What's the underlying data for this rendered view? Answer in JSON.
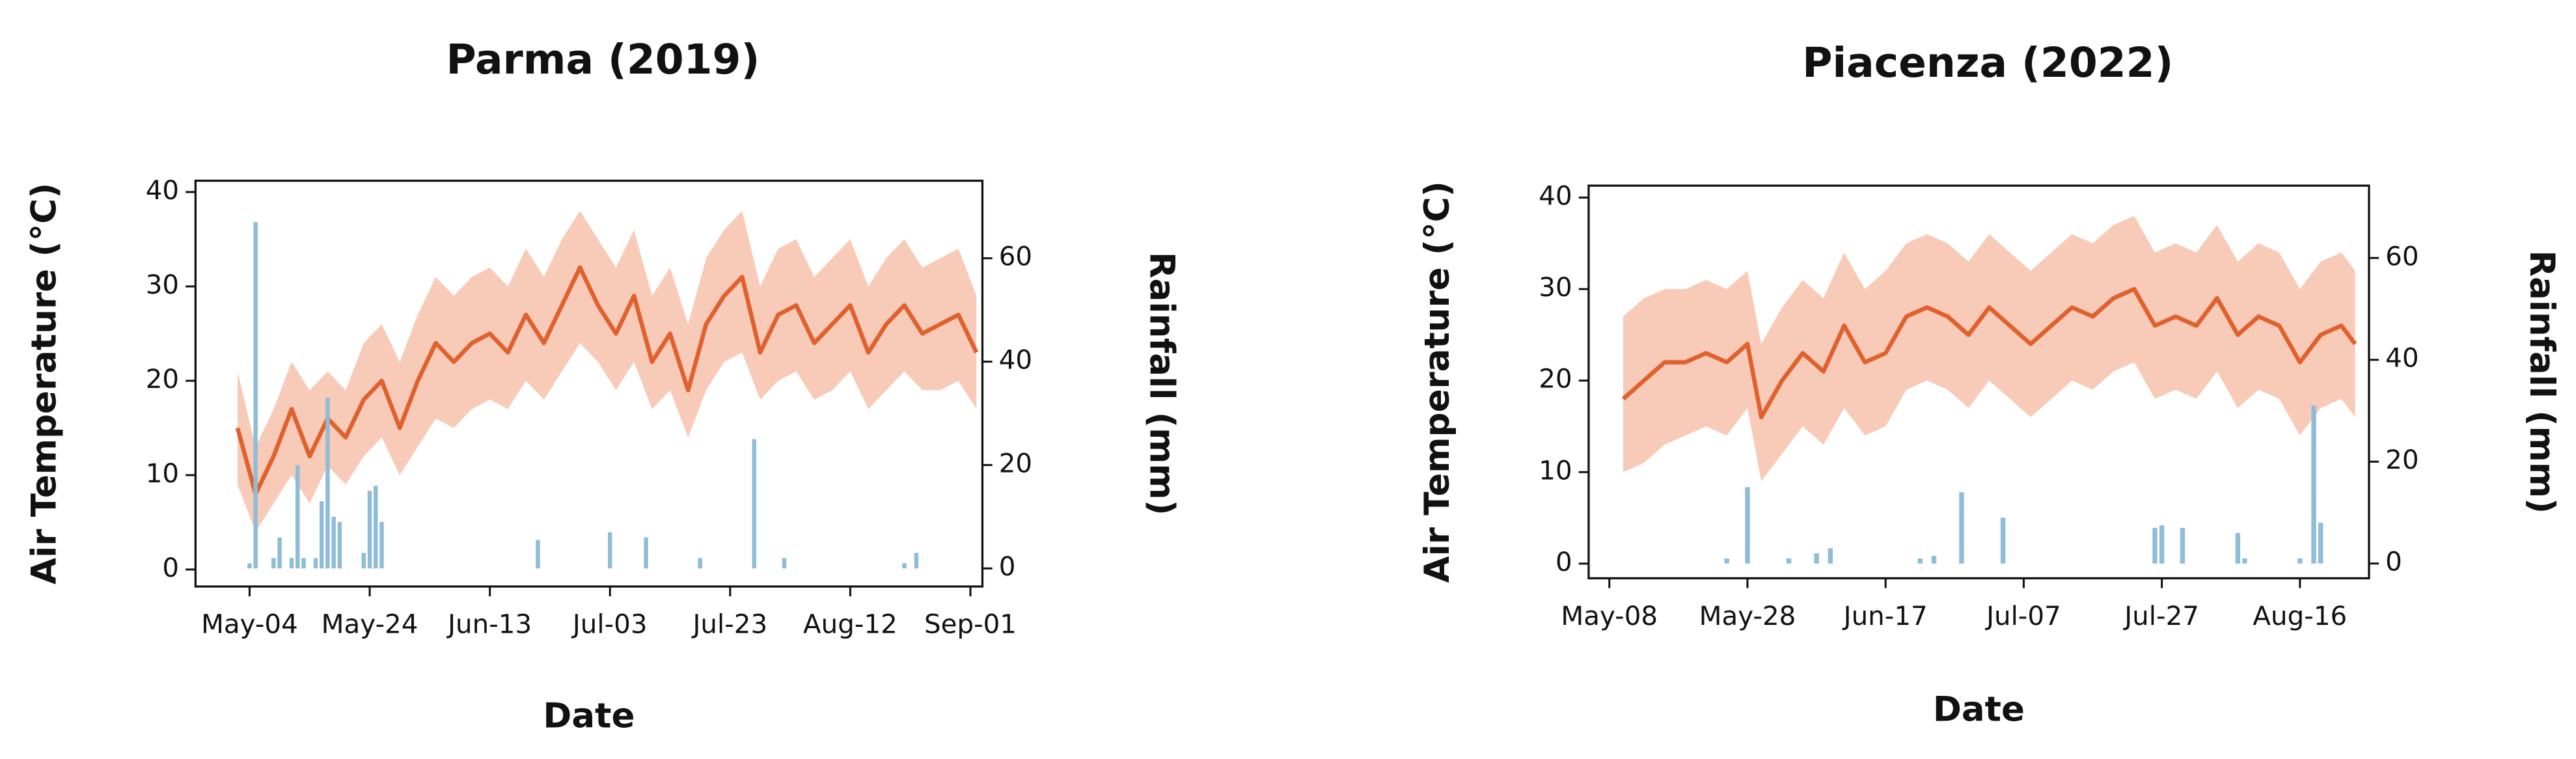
{
  "chart_data": [
    {
      "type": "line",
      "title": "Parma (2019)",
      "xlabel": "Date",
      "ylabel": "Air Temperature (°C)",
      "y2label": "Rainfall (mm)",
      "x": [
        "2019-05-02",
        "2019-05-05",
        "2019-05-08",
        "2019-05-11",
        "2019-05-14",
        "2019-05-17",
        "2019-05-20",
        "2019-05-23",
        "2019-05-26",
        "2019-05-29",
        "2019-06-01",
        "2019-06-04",
        "2019-06-07",
        "2019-06-10",
        "2019-06-13",
        "2019-06-16",
        "2019-06-19",
        "2019-06-22",
        "2019-06-25",
        "2019-06-28",
        "2019-07-01",
        "2019-07-04",
        "2019-07-07",
        "2019-07-10",
        "2019-07-13",
        "2019-07-16",
        "2019-07-19",
        "2019-07-22",
        "2019-07-25",
        "2019-07-28",
        "2019-07-31",
        "2019-08-03",
        "2019-08-06",
        "2019-08-09",
        "2019-08-12",
        "2019-08-15",
        "2019-08-18",
        "2019-08-21",
        "2019-08-24",
        "2019-08-27",
        "2019-08-30",
        "2019-09-02"
      ],
      "series": [
        {
          "color": "#e0612d",
          "band_color": "#f6b9a0",
          "values": [
            15,
            8,
            12,
            17,
            12,
            16,
            14,
            18,
            20,
            15,
            20,
            24,
            22,
            24,
            25,
            23,
            27,
            24,
            28,
            32,
            28,
            25,
            29,
            22,
            25,
            19,
            26,
            29,
            31,
            23,
            27,
            28,
            24,
            26,
            28,
            23,
            26,
            28,
            25,
            26,
            27,
            23
          ],
          "lower": [
            9,
            4,
            7,
            10,
            7,
            11,
            9,
            12,
            14,
            10,
            13,
            16,
            15,
            17,
            18,
            17,
            20,
            18,
            21,
            24,
            22,
            19,
            22,
            17,
            19,
            14,
            19,
            22,
            23,
            18,
            20,
            21,
            18,
            19,
            21,
            17,
            19,
            21,
            19,
            19,
            20,
            17
          ],
          "upper": [
            21,
            13,
            17,
            22,
            19,
            21,
            19,
            24,
            26,
            22,
            27,
            31,
            29,
            31,
            32,
            30,
            34,
            31,
            35,
            38,
            35,
            32,
            36,
            29,
            32,
            26,
            33,
            36,
            38,
            30,
            34,
            35,
            31,
            33,
            35,
            30,
            33,
            35,
            32,
            33,
            34,
            29
          ]
        },
        {
          "type": "bar",
          "axis": "y2",
          "color": "#8fbcd6",
          "x": [
            "2019-05-04",
            "2019-05-05",
            "2019-05-08",
            "2019-05-09",
            "2019-05-11",
            "2019-05-12",
            "2019-05-13",
            "2019-05-15",
            "2019-05-16",
            "2019-05-17",
            "2019-05-18",
            "2019-05-19",
            "2019-05-23",
            "2019-05-24",
            "2019-05-25",
            "2019-05-26",
            "2019-06-21",
            "2019-07-03",
            "2019-07-09",
            "2019-07-18",
            "2019-07-27",
            "2019-08-01",
            "2019-08-21",
            "2019-08-23"
          ],
          "values": [
            1,
            67,
            2,
            6,
            2,
            20,
            2,
            2,
            13,
            33,
            10,
            9,
            3,
            15,
            16,
            9,
            5.5,
            7,
            6,
            2,
            25,
            2,
            1,
            3
          ]
        }
      ],
      "xlim": [
        "2019-04-25",
        "2019-09-03"
      ],
      "xticks": [
        {
          "value": "2019-05-04",
          "label": "May-04"
        },
        {
          "value": "2019-05-24",
          "label": "May-24"
        },
        {
          "value": "2019-06-13",
          "label": "Jun-13"
        },
        {
          "value": "2019-07-03",
          "label": "Jul-03"
        },
        {
          "value": "2019-07-23",
          "label": "Jul-23"
        },
        {
          "value": "2019-08-12",
          "label": "Aug-12"
        },
        {
          "value": "2019-09-01",
          "label": "Sep-01"
        }
      ],
      "ylim": [
        -1.8,
        41.2
      ],
      "yticks": [
        0,
        10,
        20,
        30,
        40
      ],
      "y2lim": [
        -3.5,
        75
      ],
      "y2ticks": [
        0,
        20,
        40,
        60
      ]
    },
    {
      "type": "line",
      "title": "Piacenza (2022)",
      "xlabel": "Date",
      "ylabel": "Air Temperature (°C)",
      "y2label": "Rainfall (mm)",
      "x": [
        "2022-05-10",
        "2022-05-13",
        "2022-05-16",
        "2022-05-19",
        "2022-05-22",
        "2022-05-25",
        "2022-05-28",
        "2022-05-30",
        "2022-06-02",
        "2022-06-05",
        "2022-06-08",
        "2022-06-11",
        "2022-06-14",
        "2022-06-17",
        "2022-06-20",
        "2022-06-23",
        "2022-06-26",
        "2022-06-29",
        "2022-07-02",
        "2022-07-05",
        "2022-07-08",
        "2022-07-11",
        "2022-07-14",
        "2022-07-17",
        "2022-07-20",
        "2022-07-23",
        "2022-07-26",
        "2022-07-29",
        "2022-08-01",
        "2022-08-04",
        "2022-08-07",
        "2022-08-10",
        "2022-08-13",
        "2022-08-16",
        "2022-08-19",
        "2022-08-22",
        "2022-08-24"
      ],
      "series": [
        {
          "color": "#e0612d",
          "band_color": "#f6b9a0",
          "values": [
            18,
            20,
            22,
            22,
            23,
            22,
            24,
            16,
            20,
            23,
            21,
            26,
            22,
            23,
            27,
            28,
            27,
            25,
            28,
            26,
            24,
            26,
            28,
            27,
            29,
            30,
            26,
            27,
            26,
            29,
            25,
            27,
            26,
            22,
            25,
            26,
            24
          ],
          "lower": [
            10,
            11,
            13,
            14,
            15,
            14,
            17,
            9,
            12,
            15,
            13,
            17,
            14,
            15,
            19,
            20,
            19,
            17,
            20,
            18,
            16,
            18,
            20,
            19,
            21,
            22,
            18,
            19,
            18,
            21,
            17,
            19,
            18,
            14,
            17,
            18,
            16
          ],
          "upper": [
            27,
            29,
            30,
            30,
            31,
            30,
            32,
            24,
            28,
            31,
            29,
            34,
            30,
            32,
            35,
            36,
            35,
            33,
            36,
            34,
            32,
            34,
            36,
            35,
            37,
            38,
            34,
            35,
            34,
            37,
            33,
            35,
            34,
            30,
            33,
            34,
            32
          ]
        },
        {
          "type": "bar",
          "axis": "y2",
          "color": "#8fbcd6",
          "x": [
            "2022-05-25",
            "2022-05-28",
            "2022-06-03",
            "2022-06-07",
            "2022-06-09",
            "2022-06-22",
            "2022-06-24",
            "2022-06-28",
            "2022-07-04",
            "2022-07-26",
            "2022-07-27",
            "2022-07-30",
            "2022-08-07",
            "2022-08-08",
            "2022-08-16",
            "2022-08-18",
            "2022-08-19"
          ],
          "values": [
            1,
            15,
            1,
            2,
            3,
            1,
            1.5,
            14,
            9,
            7,
            7.5,
            7,
            6,
            1,
            1,
            31,
            8
          ]
        }
      ],
      "xlim": [
        "2022-05-05",
        "2022-08-26"
      ],
      "xticks": [
        {
          "value": "2022-05-08",
          "label": "May-08"
        },
        {
          "value": "2022-05-28",
          "label": "May-28"
        },
        {
          "value": "2022-06-17",
          "label": "Jun-17"
        },
        {
          "value": "2022-07-07",
          "label": "Jul-07"
        },
        {
          "value": "2022-07-27",
          "label": "Jul-27"
        },
        {
          "value": "2022-08-16",
          "label": "Aug-16"
        }
      ],
      "ylim": [
        -1.6,
        41.3
      ],
      "yticks": [
        0,
        10,
        20,
        30,
        40
      ],
      "y2lim": [
        -2.9,
        74.2
      ],
      "y2ticks": [
        0,
        20,
        40,
        60
      ]
    }
  ]
}
